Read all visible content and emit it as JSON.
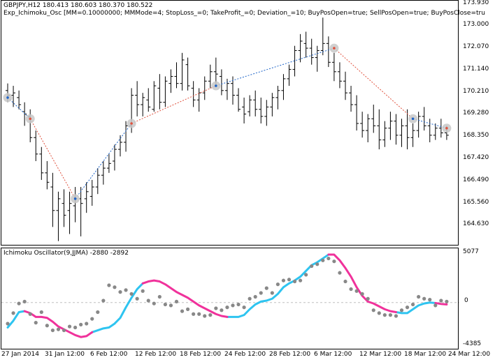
{
  "header": {
    "symbol_line": "GBPJPY,H12  180.413 180.603 180.370 180.522",
    "expert_line": "Exp_Ichimoku_Osc [MM=0.10000000; MMMode=4; StopLoss_=0; TakeProfit_=0; Deviation_=10; BuyPosOpen=true; SellPosOpen=true; BuyPosClose=tru"
  },
  "price_axis": [
    "173.930",
    "173.000",
    "172.070",
    "171.140",
    "170.210",
    "169.280",
    "168.350",
    "167.420",
    "166.490",
    "165.560",
    "164.630"
  ],
  "indicator": {
    "title": "Ichimoku Oscillator(9,JJMA) -2880 -2892",
    "axis": [
      "5077",
      "0",
      "-4385"
    ]
  },
  "time_axis": [
    "27 Jan 2014",
    "31 Jan 12:00",
    "6 Feb 12:00",
    "12 Feb 12:00",
    "18 Feb 12:00",
    "24 Feb 12:00",
    "28 Feb 12:00",
    "6 Mar 12:00",
    "12 Mar 12:00",
    "18 Mar 12:00",
    "24 Mar 12:00"
  ],
  "colors": {
    "bars": "#000000",
    "buy_line": "#1e64c8",
    "sell_line": "#e0503c",
    "osc_up": "#2ec4f0",
    "osc_down": "#f0329b",
    "osc_dots": "#888888",
    "zero_line": "#c0c0c0"
  },
  "chart_data": [
    {
      "type": "line",
      "title": "GBPJPY,H12",
      "y_range": [
        163.9,
        174.1
      ],
      "ohlc": [
        [
          170.4,
          170.7,
          169.9,
          170.2
        ],
        [
          170.2,
          170.6,
          169.7,
          170.3
        ],
        [
          170.1,
          170.4,
          169.6,
          169.8
        ],
        [
          169.5,
          169.9,
          168.9,
          169.4
        ],
        [
          169.3,
          169.6,
          168.2,
          168.4
        ],
        [
          168.4,
          168.7,
          167.4,
          167.7
        ],
        [
          167.7,
          168.0,
          166.6,
          166.9
        ],
        [
          166.9,
          167.4,
          166.2,
          166.5
        ],
        [
          166.3,
          166.9,
          164.6,
          165.3
        ],
        [
          165.3,
          166.1,
          164.0,
          165.8
        ],
        [
          165.6,
          166.2,
          164.6,
          165.1
        ],
        [
          165.3,
          166.1,
          164.3,
          165.6
        ],
        [
          165.5,
          166.3,
          164.8,
          165.8
        ],
        [
          165.8,
          166.3,
          164.2,
          165.6
        ],
        [
          165.8,
          166.5,
          165.2,
          166.1
        ],
        [
          165.9,
          166.6,
          165.5,
          166.3
        ],
        [
          166.3,
          167.1,
          166.0,
          166.8
        ],
        [
          166.8,
          167.4,
          166.4,
          167.1
        ],
        [
          167.1,
          167.7,
          166.9,
          167.3
        ],
        [
          167.4,
          168.1,
          167.0,
          167.9
        ],
        [
          167.9,
          168.5,
          167.6,
          168.2
        ],
        [
          168.2,
          169.1,
          167.8,
          168.9
        ],
        [
          168.9,
          170.5,
          168.6,
          170.2
        ],
        [
          170.2,
          170.8,
          169.3,
          169.8
        ],
        [
          169.8,
          170.3,
          169.3,
          170.1
        ],
        [
          170.0,
          170.5,
          169.5,
          169.7
        ],
        [
          169.6,
          170.8,
          169.5,
          170.6
        ],
        [
          170.5,
          171.1,
          169.6,
          169.9
        ],
        [
          169.9,
          171.0,
          169.7,
          170.8
        ],
        [
          170.7,
          171.3,
          170.3,
          171.0
        ],
        [
          171.0,
          171.6,
          170.5,
          170.7
        ],
        [
          170.7,
          172.0,
          170.4,
          171.7
        ],
        [
          171.5,
          171.8,
          170.4,
          170.6
        ],
        [
          170.5,
          170.8,
          169.7,
          170.0
        ],
        [
          170.0,
          170.5,
          169.5,
          170.3
        ],
        [
          170.3,
          171.0,
          170.0,
          170.8
        ],
        [
          170.8,
          171.5,
          170.5,
          171.2
        ],
        [
          171.2,
          171.8,
          170.6,
          171.1
        ],
        [
          171.0,
          171.3,
          170.2,
          170.4
        ],
        [
          170.4,
          170.9,
          170.0,
          170.7
        ],
        [
          170.7,
          171.0,
          169.8,
          170.2
        ],
        [
          170.2,
          170.5,
          169.5,
          169.6
        ],
        [
          169.7,
          170.1,
          169.0,
          169.4
        ],
        [
          169.5,
          170.2,
          169.3,
          170.0
        ],
        [
          170.0,
          170.4,
          169.3,
          169.6
        ],
        [
          169.6,
          170.1,
          169.0,
          169.3
        ],
        [
          169.3,
          170.0,
          168.9,
          169.7
        ],
        [
          169.7,
          170.3,
          169.3,
          170.1
        ],
        [
          170.1,
          170.6,
          169.6,
          170.4
        ],
        [
          170.4,
          171.1,
          170.0,
          170.9
        ],
        [
          170.9,
          171.5,
          170.6,
          171.3
        ],
        [
          171.3,
          172.3,
          171.0,
          172.1
        ],
        [
          172.1,
          172.8,
          171.6,
          172.5
        ],
        [
          172.4,
          172.9,
          171.8,
          172.2
        ],
        [
          172.2,
          172.6,
          171.5,
          171.8
        ],
        [
          171.8,
          172.3,
          171.2,
          172.1
        ],
        [
          172.1,
          173.5,
          171.9,
          172.4
        ],
        [
          172.4,
          172.7,
          171.4,
          171.6
        ],
        [
          171.6,
          172.0,
          170.8,
          171.2
        ],
        [
          171.2,
          171.6,
          170.5,
          170.8
        ],
        [
          170.8,
          171.2,
          170.0,
          170.3
        ],
        [
          170.3,
          170.6,
          169.5,
          169.8
        ],
        [
          169.8,
          170.2,
          168.7,
          169.0
        ],
        [
          169.0,
          169.5,
          168.4,
          168.7
        ],
        [
          168.7,
          169.4,
          168.2,
          169.2
        ],
        [
          169.2,
          169.8,
          168.6,
          168.9
        ],
        [
          168.9,
          169.6,
          167.9,
          168.3
        ],
        [
          168.3,
          169.1,
          168.0,
          168.8
        ],
        [
          168.8,
          169.5,
          168.3,
          169.1
        ],
        [
          169.1,
          169.4,
          168.1,
          168.5
        ],
        [
          168.5,
          169.2,
          168.0,
          168.9
        ],
        [
          168.9,
          169.6,
          167.9,
          168.4
        ],
        [
          168.4,
          169.0,
          168.0,
          168.7
        ],
        [
          168.7,
          169.5,
          168.4,
          169.3
        ],
        [
          169.3,
          169.7,
          168.7,
          168.9
        ],
        [
          168.9,
          169.2,
          168.2,
          168.5
        ],
        [
          168.5,
          169.0,
          168.3,
          168.8
        ],
        [
          168.8,
          169.2,
          168.4,
          168.6
        ],
        [
          168.6,
          168.9,
          168.3,
          168.5
        ]
      ],
      "signals": [
        {
          "bar": 0,
          "price": 170.1,
          "kind": "buy"
        },
        {
          "bar": 4,
          "price": 169.2,
          "kind": "sell"
        },
        {
          "bar": 12,
          "price": 165.8,
          "kind": "buy"
        },
        {
          "bar": 22,
          "price": 169.0,
          "kind": "sell"
        },
        {
          "bar": 37,
          "price": 170.6,
          "kind": "buy"
        },
        {
          "bar": 58,
          "price": 172.2,
          "kind": "sell"
        },
        {
          "bar": 72,
          "price": 169.2,
          "kind": "buy"
        },
        {
          "bar": 78,
          "price": 168.8,
          "kind": "sell"
        }
      ]
    },
    {
      "type": "line",
      "title": "Ichimoku Oscillator(9,JJMA)",
      "y_range": [
        -4385,
        5077
      ],
      "series": [
        {
          "values": [
            -2600,
            -1900,
            -1000,
            -900,
            -1100,
            -1500,
            -1500,
            -1600,
            -2000,
            -2500,
            -2800,
            -3100,
            -3400,
            -3600,
            -3500,
            -3100,
            -2900,
            -2700,
            -2600,
            -2200,
            -1600,
            -500,
            500,
            1400,
            2000,
            2200,
            2300,
            2200,
            1900,
            1500,
            1100,
            800,
            500,
            100,
            -300,
            -600,
            -900,
            -1200,
            -1400,
            -1500,
            -1500,
            -1500,
            -1300,
            -700,
            -200,
            100,
            200,
            400,
            900,
            1600,
            2000,
            2300,
            2700,
            3300,
            3900,
            4200,
            4600,
            5000,
            5000,
            4400,
            3600,
            2700,
            1600,
            700,
            100,
            -100,
            -400,
            -700,
            -900,
            -1000,
            -1100,
            -1100,
            -700,
            -300,
            -100,
            0,
            -50,
            -150,
            -200
          ],
          "up_segments": [
            [
              0,
              3
            ],
            [
              15,
              24
            ],
            [
              39,
              57
            ],
            [
              69,
              76
            ]
          ],
          "down_segments": [
            [
              3,
              15
            ],
            [
              24,
              39
            ],
            [
              57,
              69
            ],
            [
              76,
              78
            ]
          ]
        }
      ],
      "dots": [
        -2200,
        -1100,
        -100,
        100,
        -1200,
        -2100,
        -1000,
        -2400,
        -2900,
        -2800,
        -2900,
        -2500,
        -2600,
        -2300,
        -2200,
        -1700,
        -1000,
        200,
        1800,
        1600,
        1100,
        1300,
        900,
        400,
        1200,
        200,
        -100,
        600,
        -200,
        -300,
        100,
        -900,
        -700,
        -1200,
        -1200,
        -1400,
        -1300,
        -600,
        -800,
        -500,
        -300,
        -200,
        -500,
        400,
        600,
        1000,
        1500,
        1000,
        1900,
        2300,
        2400,
        2200,
        2300,
        2900,
        3800,
        4000,
        4400,
        4600,
        4300,
        3100,
        2200,
        1400,
        1200,
        900,
        400,
        -800,
        -1100,
        -1300,
        -1300,
        -1400,
        -800,
        -500,
        -200,
        600,
        400,
        300,
        -300,
        200,
        100
      ]
    }
  ]
}
